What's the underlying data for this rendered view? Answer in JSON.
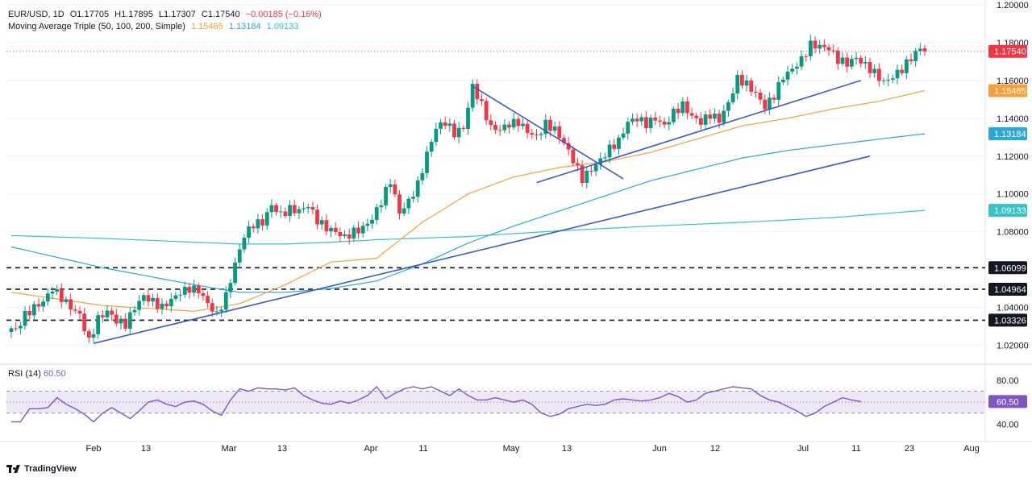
{
  "header": {
    "symbol": "EUR/USD, 1D",
    "open": "O1.17705",
    "high": "H1.17895",
    "low": "L1.17307",
    "close": "C1.17540",
    "change": "−0.00185 (−0.16%)",
    "ma_title": "Moving Average Triple (50, 100, 200, Simple)",
    "ma50": "1.15465",
    "ma100": "1.13184",
    "ma200": "1.09133"
  },
  "rsi": {
    "label": "RSI (14)",
    "value": "60.50",
    "value_tag": "60.50"
  },
  "branding": {
    "logo_text": "TradingView"
  },
  "colors": {
    "up": "#089981",
    "down": "#f23645",
    "ma50": "#f7a03a",
    "ma100": "#2aa8d8",
    "ma200": "#33c3c9",
    "trend": "#3a5bc7",
    "rsi": "#7e57c2",
    "rsi_band": "#ede7f6",
    "last": "#f23645"
  },
  "chart_data": {
    "type": "candlestick",
    "symbol": "EUR/USD",
    "timeframe": "1D",
    "ylim": [
      1.01,
      1.2
    ],
    "y_ticks": [
      "1.20000",
      "1.18000",
      "1.16000",
      "1.14000",
      "1.12000",
      "1.10000",
      "1.08000",
      "1.04000",
      "1.02000"
    ],
    "x_ticks": [
      "Feb",
      "13",
      "Mar",
      "13",
      "Apr",
      "11",
      "May",
      "13",
      "Jun",
      "12",
      "Jul",
      "11",
      "23",
      "Aug"
    ],
    "price_tags": [
      {
        "label": "1.17540",
        "value": 1.1754,
        "kind": "last"
      },
      {
        "label": "1.15465",
        "value": 1.15465,
        "kind": "ma50"
      },
      {
        "label": "1.13184",
        "value": 1.13184,
        "kind": "ma100"
      },
      {
        "label": "1.09133",
        "value": 1.09133,
        "kind": "ma200"
      },
      {
        "label": "1.06099",
        "value": 1.06099,
        "kind": "level"
      },
      {
        "label": "1.04964",
        "value": 1.04964,
        "kind": "level"
      },
      {
        "label": "1.03326",
        "value": 1.03326,
        "kind": "level"
      }
    ],
    "horizontal_levels": [
      1.06099,
      1.04964,
      1.03326
    ],
    "close_path": [
      [
        0,
        1.029
      ],
      [
        1,
        1.028
      ],
      [
        3,
        1.036
      ],
      [
        5,
        1.04
      ],
      [
        7,
        1.043
      ],
      [
        9,
        1.05
      ],
      [
        11,
        1.045
      ],
      [
        13,
        1.04
      ],
      [
        15,
        1.036
      ],
      [
        17,
        1.022
      ],
      [
        19,
        1.034
      ],
      [
        21,
        1.038
      ],
      [
        23,
        1.033
      ],
      [
        25,
        1.031
      ],
      [
        27,
        1.04
      ],
      [
        29,
        1.046
      ],
      [
        31,
        1.043
      ],
      [
        33,
        1.04
      ],
      [
        35,
        1.044
      ],
      [
        37,
        1.048
      ],
      [
        39,
        1.05
      ],
      [
        41,
        1.049
      ],
      [
        43,
        1.042
      ],
      [
        45,
        1.036
      ],
      [
        47,
        1.046
      ],
      [
        49,
        1.063
      ],
      [
        51,
        1.078
      ],
      [
        53,
        1.084
      ],
      [
        55,
        1.085
      ],
      [
        57,
        1.094
      ],
      [
        59,
        1.089
      ],
      [
        61,
        1.092
      ],
      [
        63,
        1.091
      ],
      [
        65,
        1.094
      ],
      [
        67,
        1.086
      ],
      [
        69,
        1.082
      ],
      [
        71,
        1.08
      ],
      [
        73,
        1.077
      ],
      [
        75,
        1.08
      ],
      [
        77,
        1.082
      ],
      [
        79,
        1.087
      ],
      [
        81,
        1.096
      ],
      [
        83,
        1.107
      ],
      [
        85,
        1.09
      ],
      [
        87,
        1.096
      ],
      [
        89,
        1.105
      ],
      [
        91,
        1.121
      ],
      [
        93,
        1.135
      ],
      [
        95,
        1.138
      ],
      [
        97,
        1.132
      ],
      [
        99,
        1.135
      ],
      [
        101,
        1.157
      ],
      [
        103,
        1.147
      ],
      [
        105,
        1.135
      ],
      [
        107,
        1.134
      ],
      [
        109,
        1.137
      ],
      [
        111,
        1.138
      ],
      [
        113,
        1.133
      ],
      [
        115,
        1.13
      ],
      [
        117,
        1.137
      ],
      [
        119,
        1.134
      ],
      [
        121,
        1.127
      ],
      [
        123,
        1.118
      ],
      [
        125,
        1.108
      ],
      [
        127,
        1.113
      ],
      [
        129,
        1.118
      ],
      [
        131,
        1.124
      ],
      [
        133,
        1.128
      ],
      [
        135,
        1.138
      ],
      [
        137,
        1.14
      ],
      [
        139,
        1.137
      ],
      [
        141,
        1.14
      ],
      [
        143,
        1.136
      ],
      [
        145,
        1.143
      ],
      [
        147,
        1.147
      ],
      [
        149,
        1.141
      ],
      [
        151,
        1.138
      ],
      [
        153,
        1.142
      ],
      [
        155,
        1.139
      ],
      [
        157,
        1.148
      ],
      [
        159,
        1.161
      ],
      [
        161,
        1.158
      ],
      [
        163,
        1.153
      ],
      [
        165,
        1.146
      ],
      [
        167,
        1.152
      ],
      [
        169,
        1.162
      ],
      [
        171,
        1.166
      ],
      [
        173,
        1.171
      ],
      [
        175,
        1.179
      ],
      [
        177,
        1.178
      ],
      [
        179,
        1.177
      ],
      [
        181,
        1.171
      ],
      [
        183,
        1.169
      ],
      [
        185,
        1.172
      ],
      [
        187,
        1.168
      ],
      [
        189,
        1.164
      ],
      [
        191,
        1.159
      ],
      [
        193,
        1.162
      ],
      [
        195,
        1.166
      ],
      [
        197,
        1.172
      ],
      [
        199,
        1.177
      ],
      [
        200,
        1.1754
      ]
    ],
    "ma50_path": [
      [
        0,
        1.048
      ],
      [
        20,
        1.041
      ],
      [
        40,
        1.038
      ],
      [
        50,
        1.042
      ],
      [
        60,
        1.052
      ],
      [
        70,
        1.064
      ],
      [
        80,
        1.066
      ],
      [
        90,
        1.085
      ],
      [
        100,
        1.1
      ],
      [
        110,
        1.109
      ],
      [
        120,
        1.114
      ],
      [
        130,
        1.117
      ],
      [
        140,
        1.122
      ],
      [
        150,
        1.129
      ],
      [
        160,
        1.136
      ],
      [
        170,
        1.14
      ],
      [
        180,
        1.145
      ],
      [
        190,
        1.149
      ],
      [
        200,
        1.15465
      ]
    ],
    "ma100_path": [
      [
        0,
        1.072
      ],
      [
        20,
        1.061
      ],
      [
        40,
        1.052
      ],
      [
        50,
        1.048
      ],
      [
        60,
        1.048
      ],
      [
        70,
        1.05
      ],
      [
        80,
        1.054
      ],
      [
        90,
        1.063
      ],
      [
        100,
        1.074
      ],
      [
        110,
        1.083
      ],
      [
        120,
        1.091
      ],
      [
        130,
        1.099
      ],
      [
        140,
        1.107
      ],
      [
        150,
        1.113
      ],
      [
        160,
        1.119
      ],
      [
        170,
        1.123
      ],
      [
        180,
        1.126
      ],
      [
        190,
        1.129
      ],
      [
        200,
        1.13184
      ]
    ],
    "ma200_path": [
      [
        0,
        1.078
      ],
      [
        20,
        1.0765
      ],
      [
        40,
        1.0745
      ],
      [
        50,
        1.0735
      ],
      [
        60,
        1.0735
      ],
      [
        70,
        1.0745
      ],
      [
        80,
        1.0758
      ],
      [
        100,
        1.0775
      ],
      [
        120,
        1.0805
      ],
      [
        140,
        1.083
      ],
      [
        160,
        1.085
      ],
      [
        180,
        1.0875
      ],
      [
        200,
        1.09133
      ]
    ],
    "trendlines": [
      {
        "from": [
          18,
          1.021
        ],
        "to": [
          188,
          1.12
        ]
      },
      {
        "from": [
          101,
          1.157
        ],
        "to": [
          134,
          1.108
        ]
      },
      {
        "from": [
          115,
          1.106
        ],
        "to": [
          186,
          1.16
        ]
      }
    ],
    "rsi_ylim": [
      30,
      85
    ],
    "rsi_ticks": [
      "80.00",
      "40.00"
    ],
    "rsi_levels": [
      70,
      60,
      50
    ],
    "rsi_path": [
      [
        0,
        42
      ],
      [
        2,
        42
      ],
      [
        4,
        54
      ],
      [
        6,
        54
      ],
      [
        8,
        55
      ],
      [
        10,
        64
      ],
      [
        12,
        58
      ],
      [
        14,
        54
      ],
      [
        16,
        49
      ],
      [
        18,
        42
      ],
      [
        20,
        50
      ],
      [
        22,
        55
      ],
      [
        24,
        50
      ],
      [
        26,
        45
      ],
      [
        28,
        52
      ],
      [
        30,
        60
      ],
      [
        32,
        62
      ],
      [
        34,
        58
      ],
      [
        36,
        56
      ],
      [
        38,
        60
      ],
      [
        40,
        61
      ],
      [
        42,
        58
      ],
      [
        44,
        52
      ],
      [
        46,
        48
      ],
      [
        48,
        62
      ],
      [
        50,
        72
      ],
      [
        52,
        70
      ],
      [
        54,
        73
      ],
      [
        56,
        72
      ],
      [
        58,
        72
      ],
      [
        60,
        71
      ],
      [
        62,
        73
      ],
      [
        64,
        66
      ],
      [
        66,
        62
      ],
      [
        68,
        59
      ],
      [
        70,
        58
      ],
      [
        72,
        61
      ],
      [
        74,
        59
      ],
      [
        76,
        62
      ],
      [
        78,
        66
      ],
      [
        80,
        74
      ],
      [
        82,
        63
      ],
      [
        84,
        68
      ],
      [
        86,
        72
      ],
      [
        88,
        74
      ],
      [
        90,
        72
      ],
      [
        92,
        74
      ],
      [
        94,
        70
      ],
      [
        96,
        66
      ],
      [
        98,
        72
      ],
      [
        100,
        66
      ],
      [
        102,
        62
      ],
      [
        104,
        62
      ],
      [
        106,
        64
      ],
      [
        108,
        62
      ],
      [
        110,
        60
      ],
      [
        112,
        62
      ],
      [
        114,
        58
      ],
      [
        116,
        50
      ],
      [
        118,
        47
      ],
      [
        120,
        49
      ],
      [
        122,
        54
      ],
      [
        124,
        56
      ],
      [
        126,
        58
      ],
      [
        128,
        57
      ],
      [
        130,
        58
      ],
      [
        132,
        62
      ],
      [
        134,
        63
      ],
      [
        136,
        62
      ],
      [
        138,
        61
      ],
      [
        140,
        62
      ],
      [
        142,
        64
      ],
      [
        144,
        68
      ],
      [
        146,
        65
      ],
      [
        148,
        60
      ],
      [
        150,
        62
      ],
      [
        152,
        68
      ],
      [
        154,
        70
      ],
      [
        156,
        72
      ],
      [
        158,
        74
      ],
      [
        160,
        73
      ],
      [
        162,
        72
      ],
      [
        164,
        66
      ],
      [
        166,
        62
      ],
      [
        168,
        60
      ],
      [
        170,
        56
      ],
      [
        172,
        52
      ],
      [
        174,
        47
      ],
      [
        176,
        50
      ],
      [
        178,
        56
      ],
      [
        180,
        60
      ],
      [
        182,
        64
      ],
      [
        184,
        62
      ],
      [
        186,
        60.5
      ]
    ]
  }
}
